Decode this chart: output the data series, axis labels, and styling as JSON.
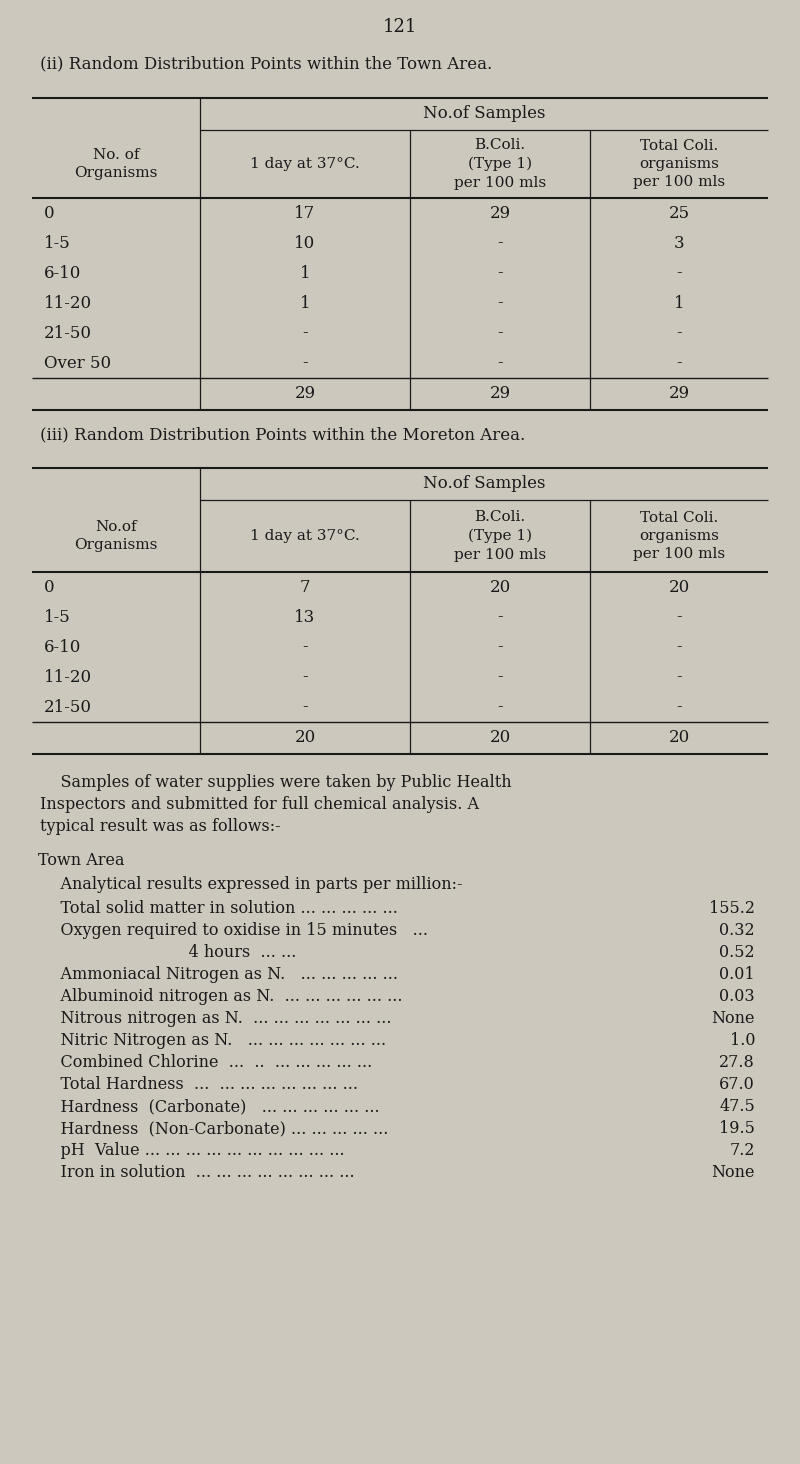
{
  "bg_color": "#cdc8be",
  "text_color": "#1a1a1a",
  "page_number": "121",
  "title_ii": "(ii) Random Distribution Points within the Town Area.",
  "title_iii": "(iii) Random Distribution Points within the Moreton Area.",
  "table1": {
    "header_span": "No.of Samples",
    "col1_header": "No. of\nOrganisms",
    "col2_header": "1 day at 37°C.",
    "col3_header": "B.Coli.\n(Type 1)\nper 100 mls",
    "col4_header": "Total Coli.\norganisms\nper 100 mls",
    "rows": [
      [
        "0",
        "17",
        "29",
        "25"
      ],
      [
        "1-5",
        "10",
        "-",
        "3"
      ],
      [
        "6-10",
        "1",
        "-",
        "-"
      ],
      [
        "11-20",
        "1",
        "-",
        "1"
      ],
      [
        "21-50",
        "-",
        "-",
        "-"
      ],
      [
        "Over 50",
        "-",
        "-",
        "-"
      ]
    ],
    "totals": [
      "",
      "29",
      "29",
      "29"
    ]
  },
  "table2": {
    "header_span": "No.of Samples",
    "col1_header": "No.of\nOrganisms",
    "col2_header": "1 day at 37°C.",
    "col3_header": "B.Coli.\n(Type 1)\nper 100 mls",
    "col4_header": "Total Coli.\norganisms\nper 100 mls",
    "rows": [
      [
        "0",
        "7",
        "20",
        "20"
      ],
      [
        "1-5",
        "13",
        "-",
        "-"
      ],
      [
        "6-10",
        "-",
        "-",
        "-"
      ],
      [
        "11-20",
        "-",
        "-",
        "-"
      ],
      [
        "21-50",
        "-",
        "-",
        "-"
      ]
    ],
    "totals": [
      "",
      "20",
      "20",
      "20"
    ]
  },
  "paragraph": "    Samples of water supplies were taken by Public Health\nInspectors and submitted for full chemical analysis. A\ntypical result was as follows:-",
  "town_area_title": "Town Area",
  "analytical_intro": "    Analytical results expressed in parts per million:-",
  "analytical_rows": [
    [
      "    Total solid matter in solution ... ... ... ... ...",
      "155.2"
    ],
    [
      "    Oxygen required to oxidise in 15 minutes   ...",
      "0.32"
    ],
    [
      "                             4 hours  ... ...",
      "0.52"
    ],
    [
      "    Ammoniacal Nitrogen as N.   ... ... ... ... ...",
      "0.01"
    ],
    [
      "    Albuminoid nitrogen as N.  ... ... ... ... ... ...",
      "0.03"
    ],
    [
      "    Nitrous nitrogen as N.  ... ... ... ... ... ... ...",
      "None"
    ],
    [
      "    Nitric Nitrogen as N.   ... ... ... ... ... ... ...",
      "1.0"
    ],
    [
      "    Combined Chlorine  ...  ..  ... ... ... ... ...",
      "27.8"
    ],
    [
      "    Total Hardness  ...  ... ... ... ... ... ... ...",
      "67.0"
    ],
    [
      "    Hardness  (Carbonate)   ... ... ... ... ... ...",
      "47.5"
    ],
    [
      "    Hardness  (Non-Carbonate) ... ... ... ... ...",
      "19.5"
    ],
    [
      "    pH  Value ... ... ... ... ... ... ... ... ... ...",
      "7.2"
    ],
    [
      "    Iron in solution  ... ... ... ... ... ... ... ...",
      "None"
    ]
  ]
}
